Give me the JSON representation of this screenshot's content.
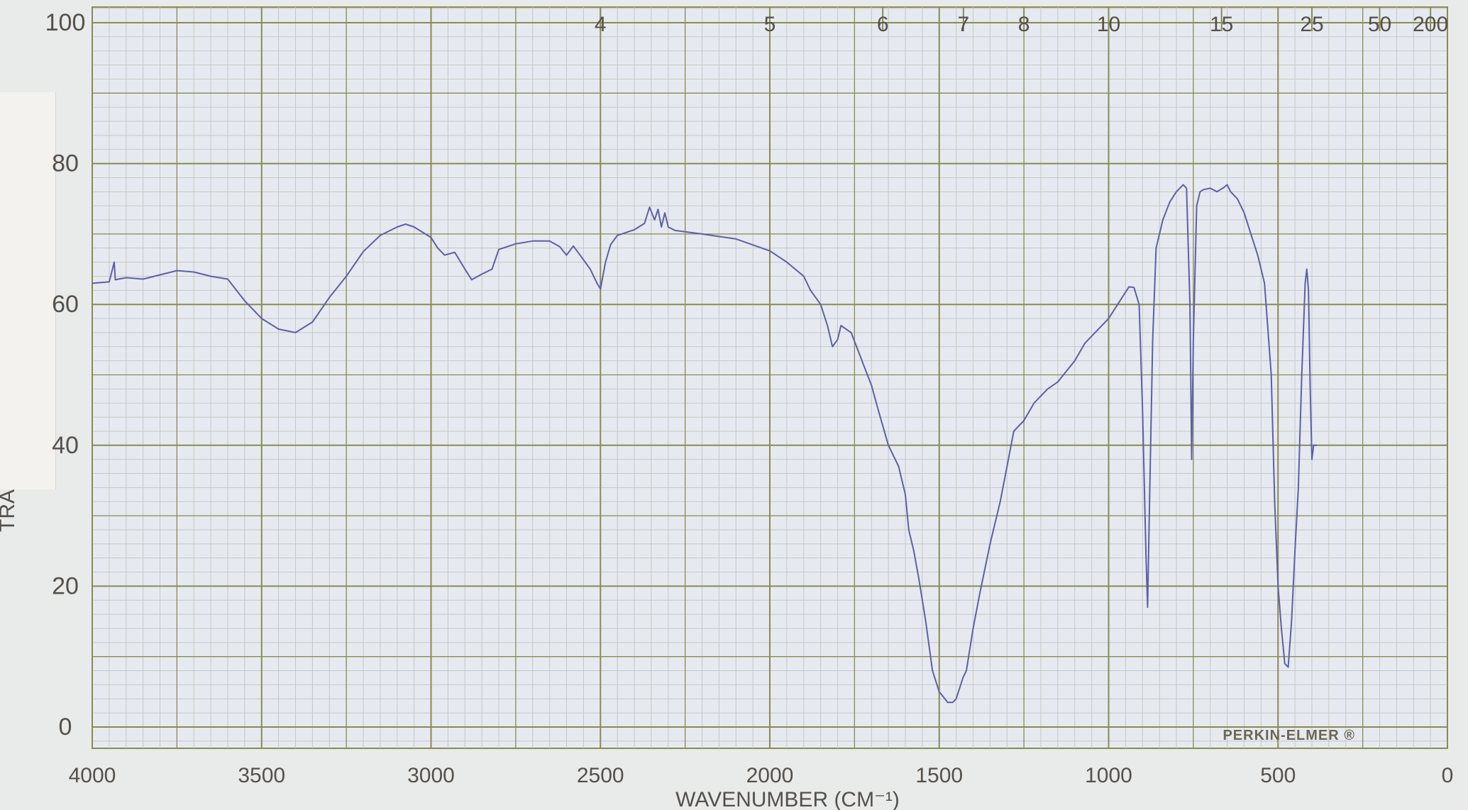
{
  "chart_data": {
    "type": "line",
    "title": "",
    "xlabel": "WAVENUMBER (CM⁻¹)",
    "ylabel": "TRA",
    "brand_label": "PERKIN-ELMER ®",
    "x_reversed": true,
    "xlim": [
      4000,
      0
    ],
    "ylim": [
      0,
      100
    ],
    "grid": true,
    "x_ticks": [
      {
        "value": 4000,
        "label": "4000"
      },
      {
        "value": 3500,
        "label": "3500"
      },
      {
        "value": 3000,
        "label": "3000"
      },
      {
        "value": 2500,
        "label": "2500"
      },
      {
        "value": 2000,
        "label": "2000"
      },
      {
        "value": 1500,
        "label": "1500"
      },
      {
        "value": 1000,
        "label": "1000"
      },
      {
        "value": 500,
        "label": "500"
      },
      {
        "value": 0,
        "label": "0"
      }
    ],
    "y_ticks": [
      {
        "value": 0,
        "label": "0"
      },
      {
        "value": 20,
        "label": "20"
      },
      {
        "value": 40,
        "label": "40"
      },
      {
        "value": 60,
        "label": "60"
      },
      {
        "value": 80,
        "label": "80"
      },
      {
        "value": 100,
        "label": "100"
      }
    ],
    "top_ticks": [
      {
        "value": 4,
        "label": "4"
      },
      {
        "value": 5,
        "label": "5"
      },
      {
        "value": 6,
        "label": "6"
      },
      {
        "value": 7,
        "label": "7"
      },
      {
        "value": 8,
        "label": "8"
      },
      {
        "value": 10,
        "label": "10"
      },
      {
        "value": 15,
        "label": "15"
      },
      {
        "value": 25,
        "label": "25"
      },
      {
        "value": 50,
        "label": "50"
      },
      {
        "value": 200,
        "label": "200"
      }
    ],
    "colors": {
      "paper": "#e6eaf0",
      "grid_major": "#8a8a52",
      "grid_minor": "#c4c8c4",
      "line": "#5d5fa8"
    },
    "series": [
      {
        "values": [
          [
            4000,
            63
          ],
          [
            3950,
            63.2
          ],
          [
            3935,
            66
          ],
          [
            3932,
            63.5
          ],
          [
            3900,
            63.8
          ],
          [
            3850,
            63.6
          ],
          [
            3800,
            64.2
          ],
          [
            3750,
            64.8
          ],
          [
            3700,
            64.6
          ],
          [
            3650,
            64
          ],
          [
            3600,
            63.6
          ],
          [
            3550,
            60.5
          ],
          [
            3500,
            58
          ],
          [
            3450,
            56.5
          ],
          [
            3400,
            56
          ],
          [
            3350,
            57.5
          ],
          [
            3300,
            61
          ],
          [
            3250,
            64
          ],
          [
            3200,
            67.5
          ],
          [
            3150,
            69.8
          ],
          [
            3100,
            71
          ],
          [
            3075,
            71.4
          ],
          [
            3050,
            71
          ],
          [
            3000,
            69.5
          ],
          [
            2980,
            68
          ],
          [
            2960,
            67
          ],
          [
            2930,
            67.4
          ],
          [
            2900,
            65
          ],
          [
            2880,
            63.5
          ],
          [
            2850,
            64.3
          ],
          [
            2820,
            65
          ],
          [
            2800,
            67.8
          ],
          [
            2750,
            68.6
          ],
          [
            2700,
            69
          ],
          [
            2650,
            69
          ],
          [
            2620,
            68.2
          ],
          [
            2600,
            67
          ],
          [
            2580,
            68.3
          ],
          [
            2560,
            67
          ],
          [
            2530,
            65
          ],
          [
            2510,
            63
          ],
          [
            2500,
            62.2
          ],
          [
            2485,
            66
          ],
          [
            2470,
            68.5
          ],
          [
            2450,
            69.8
          ],
          [
            2400,
            70.6
          ],
          [
            2370,
            71.5
          ],
          [
            2355,
            73.8
          ],
          [
            2340,
            72
          ],
          [
            2330,
            73.5
          ],
          [
            2320,
            71
          ],
          [
            2310,
            73
          ],
          [
            2300,
            71
          ],
          [
            2280,
            70.5
          ],
          [
            2200,
            70
          ],
          [
            2100,
            69.3
          ],
          [
            2000,
            67.6
          ],
          [
            1950,
            66
          ],
          [
            1900,
            64
          ],
          [
            1880,
            62
          ],
          [
            1850,
            60
          ],
          [
            1830,
            57
          ],
          [
            1815,
            54
          ],
          [
            1800,
            55
          ],
          [
            1790,
            57
          ],
          [
            1760,
            56
          ],
          [
            1720,
            51
          ],
          [
            1700,
            48.5
          ],
          [
            1680,
            45
          ],
          [
            1650,
            40
          ],
          [
            1620,
            37
          ],
          [
            1600,
            33
          ],
          [
            1590,
            28
          ],
          [
            1575,
            25
          ],
          [
            1560,
            21
          ],
          [
            1540,
            15
          ],
          [
            1520,
            8
          ],
          [
            1500,
            5
          ],
          [
            1475,
            3.5
          ],
          [
            1460,
            3.5
          ],
          [
            1450,
            4
          ],
          [
            1430,
            7
          ],
          [
            1420,
            8
          ],
          [
            1400,
            14
          ],
          [
            1380,
            19
          ],
          [
            1350,
            26
          ],
          [
            1320,
            32
          ],
          [
            1300,
            37
          ],
          [
            1280,
            42
          ],
          [
            1250,
            43.5
          ],
          [
            1220,
            46
          ],
          [
            1180,
            48
          ],
          [
            1150,
            49
          ],
          [
            1100,
            52
          ],
          [
            1070,
            54.5
          ],
          [
            1040,
            56
          ],
          [
            1000,
            58
          ],
          [
            980,
            59.5
          ],
          [
            960,
            61
          ],
          [
            940,
            62.5
          ],
          [
            925,
            62.4
          ],
          [
            910,
            60
          ],
          [
            900,
            45
          ],
          [
            890,
            25
          ],
          [
            885,
            17
          ],
          [
            880,
            30
          ],
          [
            870,
            55
          ],
          [
            860,
            68
          ],
          [
            840,
            72
          ],
          [
            820,
            74.5
          ],
          [
            800,
            76
          ],
          [
            780,
            77
          ],
          [
            770,
            76.5
          ],
          [
            760,
            60
          ],
          [
            755,
            38
          ],
          [
            750,
            55
          ],
          [
            740,
            74
          ],
          [
            730,
            76
          ],
          [
            720,
            76.3
          ],
          [
            700,
            76.5
          ],
          [
            680,
            76
          ],
          [
            660,
            76.6
          ],
          [
            650,
            77
          ],
          [
            640,
            76
          ],
          [
            620,
            75
          ],
          [
            600,
            73
          ],
          [
            580,
            70
          ],
          [
            560,
            67
          ],
          [
            540,
            63
          ],
          [
            520,
            50
          ],
          [
            510,
            32
          ],
          [
            500,
            20
          ],
          [
            490,
            14
          ],
          [
            480,
            9
          ],
          [
            470,
            8.5
          ],
          [
            460,
            15
          ],
          [
            450,
            25
          ],
          [
            440,
            34
          ],
          [
            430,
            50
          ],
          [
            420,
            63
          ],
          [
            415,
            65
          ],
          [
            410,
            62
          ],
          [
            405,
            48
          ],
          [
            400,
            38
          ],
          [
            395,
            40
          ],
          [
            385,
            40
          ]
        ]
      }
    ]
  }
}
